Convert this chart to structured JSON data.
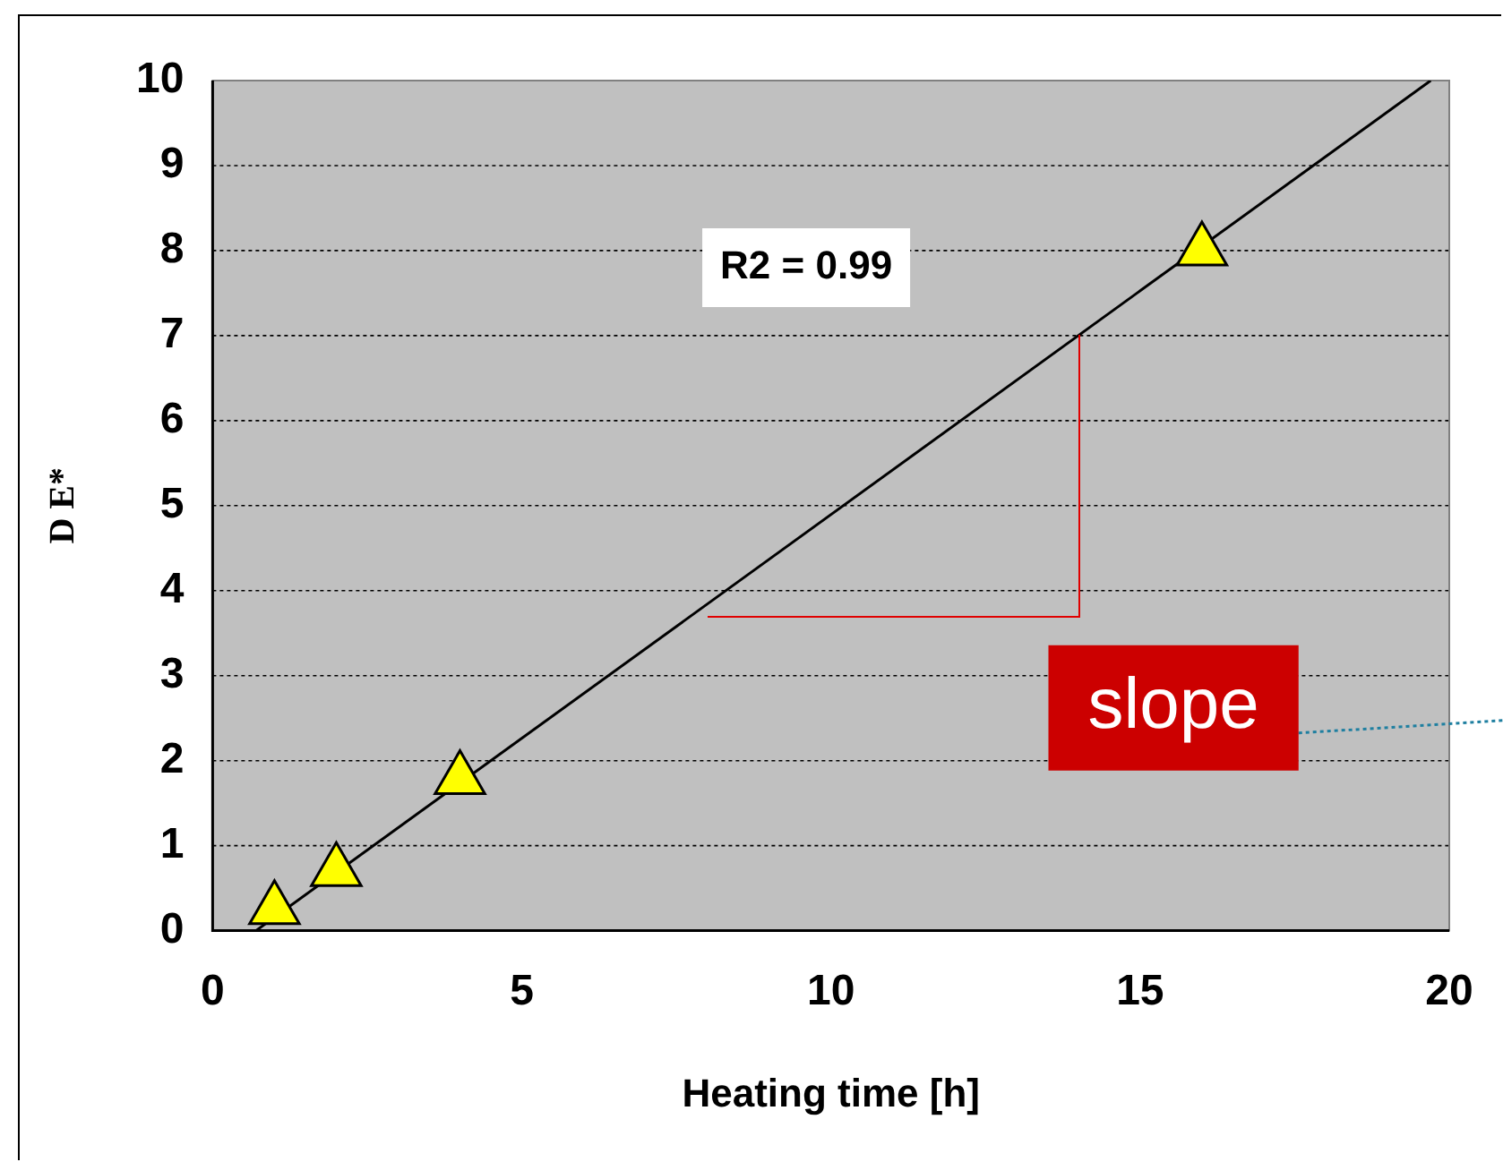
{
  "chart_data": {
    "type": "scatter",
    "xlabel": "Heating time [h]",
    "ylabel": "D E*",
    "xlim": [
      0,
      20
    ],
    "xticks": [
      0,
      5,
      10,
      15,
      20
    ],
    "ylim": [
      0,
      10
    ],
    "yticks": [
      0,
      1,
      2,
      3,
      4,
      5,
      6,
      7,
      8,
      9,
      10
    ],
    "grid": "y",
    "legend": false,
    "marker": "triangle",
    "annotations": [
      "R2 = 0.99",
      {
        "text": "slope",
        "x": 14,
        "y": 7
      }
    ],
    "series": [
      {
        "type": "scatter",
        "color": "#ffff00",
        "x": [
          1,
          2,
          4,
          16
        ],
        "values": [
          0.25,
          0.7,
          1.78,
          8.0
        ]
      },
      {
        "type": "line",
        "color": "#000000",
        "x": [
          0.7,
          19.7
        ],
        "values": [
          0,
          10
        ],
        "marker": "none",
        "line_style": "solid"
      }
    ]
  }
}
